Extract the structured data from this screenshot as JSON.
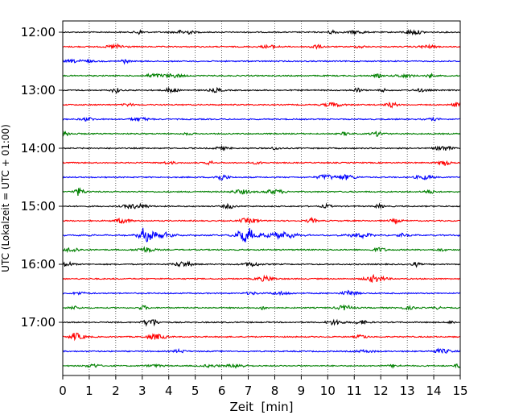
{
  "chart_data": {
    "type": "line",
    "title": "",
    "xlabel": "Zeit  [min]",
    "ylabel": "UTC (Lokalzeit = UTC + 01:00)",
    "xlim": [
      0,
      15
    ],
    "xticks": [
      0,
      1,
      2,
      3,
      4,
      5,
      6,
      7,
      8,
      9,
      10,
      11,
      12,
      13,
      14,
      15
    ],
    "xtick_labels": [
      "0",
      "1",
      "2",
      "3",
      "4",
      "5",
      "6",
      "7",
      "8",
      "9",
      "10",
      "11",
      "12",
      "13",
      "14",
      "15"
    ],
    "ytick_labels": [
      "12:00",
      "13:00",
      "14:00",
      "15:00",
      "16:00",
      "17:00"
    ],
    "grid": "vertical-dotted",
    "trace_colors": [
      "#000000",
      "#ff0000",
      "#0000ff",
      "#008000"
    ],
    "traces": [
      {
        "start": "12:00"
      },
      {
        "start": "12:15"
      },
      {
        "start": "12:30"
      },
      {
        "start": "12:45"
      },
      {
        "start": "13:00"
      },
      {
        "start": "13:15"
      },
      {
        "start": "13:30"
      },
      {
        "start": "13:45"
      },
      {
        "start": "14:00"
      },
      {
        "start": "14:15"
      },
      {
        "start": "14:30"
      },
      {
        "start": "14:45"
      },
      {
        "start": "15:00"
      },
      {
        "start": "15:15"
      },
      {
        "start": "15:30"
      },
      {
        "start": "15:45"
      },
      {
        "start": "16:00"
      },
      {
        "start": "16:15"
      },
      {
        "start": "16:30"
      },
      {
        "start": "16:45"
      },
      {
        "start": "17:00"
      },
      {
        "start": "17:15"
      },
      {
        "start": "17:30"
      },
      {
        "start": "17:45"
      }
    ]
  }
}
